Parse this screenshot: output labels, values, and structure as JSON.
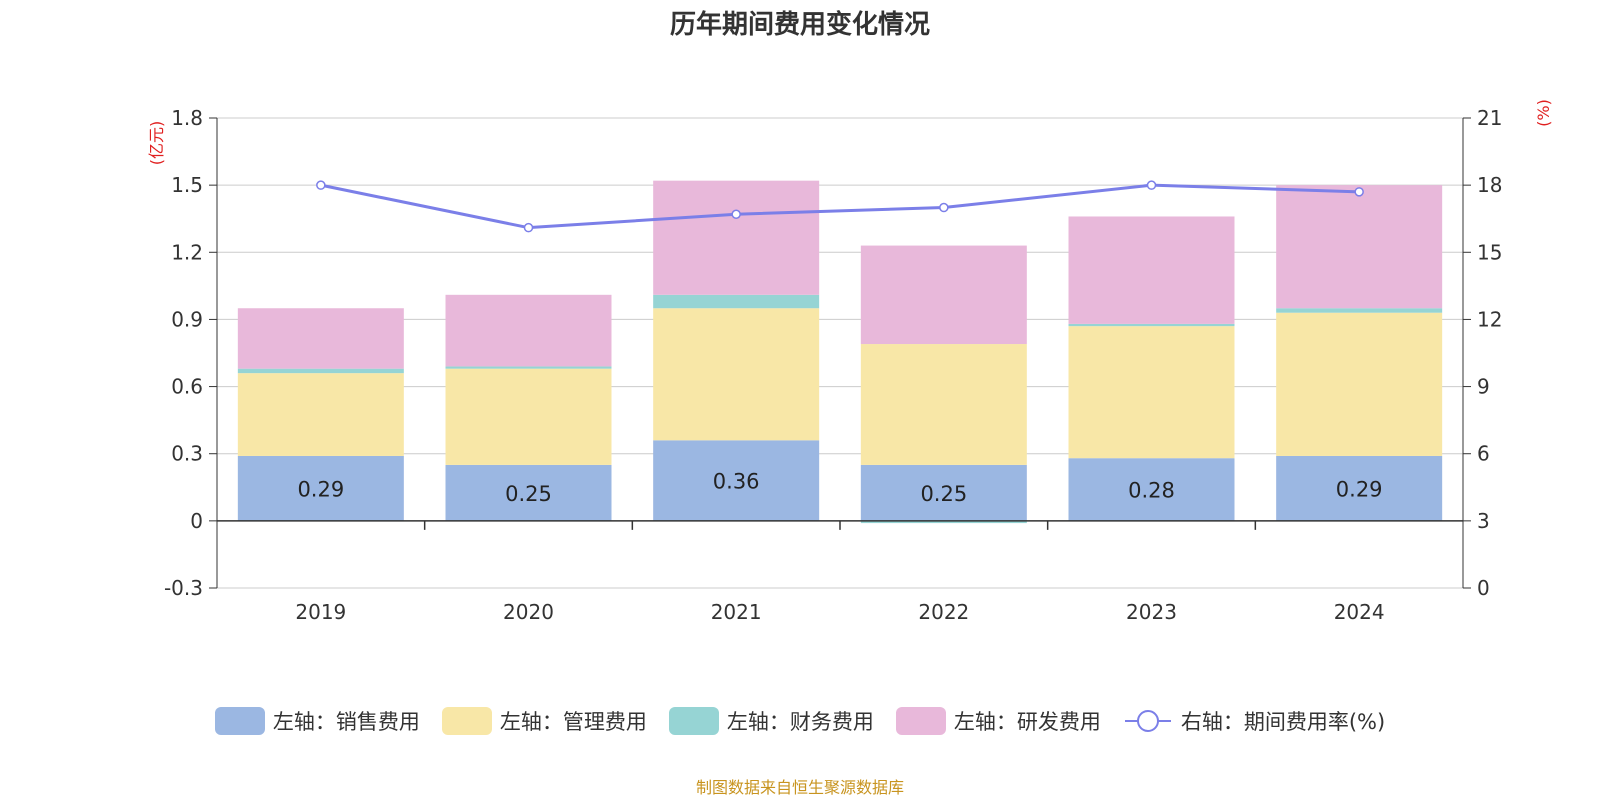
{
  "title": "历年期间费用变化情况",
  "source": "制图数据来自恒生聚源数据库",
  "colors": {
    "sales": "#9bb7e2",
    "admin": "#f8e7a7",
    "finance": "#96d4d4",
    "rd": "#e8b8da",
    "line": "#7b7fe8"
  },
  "legend": [
    {
      "key": "sales",
      "label": "左轴：销售费用",
      "type": "bar"
    },
    {
      "key": "admin",
      "label": "左轴：管理费用",
      "type": "bar"
    },
    {
      "key": "finance",
      "label": "左轴：财务费用",
      "type": "bar"
    },
    {
      "key": "rd",
      "label": "左轴：研发费用",
      "type": "bar"
    },
    {
      "key": "line",
      "label": "右轴：期间费用率(%)",
      "type": "line"
    }
  ],
  "chart_data": {
    "type": "bar",
    "title": "历年期间费用变化情况",
    "categories": [
      "2019",
      "2020",
      "2021",
      "2022",
      "2023",
      "2024"
    ],
    "series": [
      {
        "name": "左轴：销售费用",
        "key": "sales",
        "axis": "left",
        "values": [
          0.29,
          0.25,
          0.36,
          0.25,
          0.28,
          0.29
        ]
      },
      {
        "name": "左轴：管理费用",
        "key": "admin",
        "axis": "left",
        "values": [
          0.37,
          0.43,
          0.59,
          0.54,
          0.59,
          0.64
        ]
      },
      {
        "name": "左轴：财务费用",
        "key": "finance",
        "axis": "left",
        "values": [
          0.02,
          0.01,
          0.06,
          -0.01,
          0.01,
          0.02
        ]
      },
      {
        "name": "左轴：研发费用",
        "key": "rd",
        "axis": "left",
        "values": [
          0.27,
          0.32,
          0.51,
          0.44,
          0.48,
          0.55
        ]
      },
      {
        "name": "右轴：期间费用率(%)",
        "key": "line",
        "axis": "right",
        "type": "line",
        "values": [
          18.0,
          16.1,
          16.7,
          17.0,
          18.0,
          17.7
        ]
      }
    ],
    "data_labels": [
      "0.29",
      "0.25",
      "0.36",
      "0.25",
      "0.28",
      "0.29"
    ],
    "left_axis": {
      "unit": "(亿元)",
      "min": -0.3,
      "max": 1.8,
      "ticks": [
        "-0.3",
        "0",
        "0.3",
        "0.6",
        "0.9",
        "1.2",
        "1.5",
        "1.8"
      ]
    },
    "right_axis": {
      "unit": "(%)",
      "min": 0,
      "max": 21,
      "ticks": [
        "0",
        "3",
        "6",
        "9",
        "12",
        "15",
        "18",
        "21"
      ]
    },
    "grid": true,
    "legend_position": "bottom"
  }
}
